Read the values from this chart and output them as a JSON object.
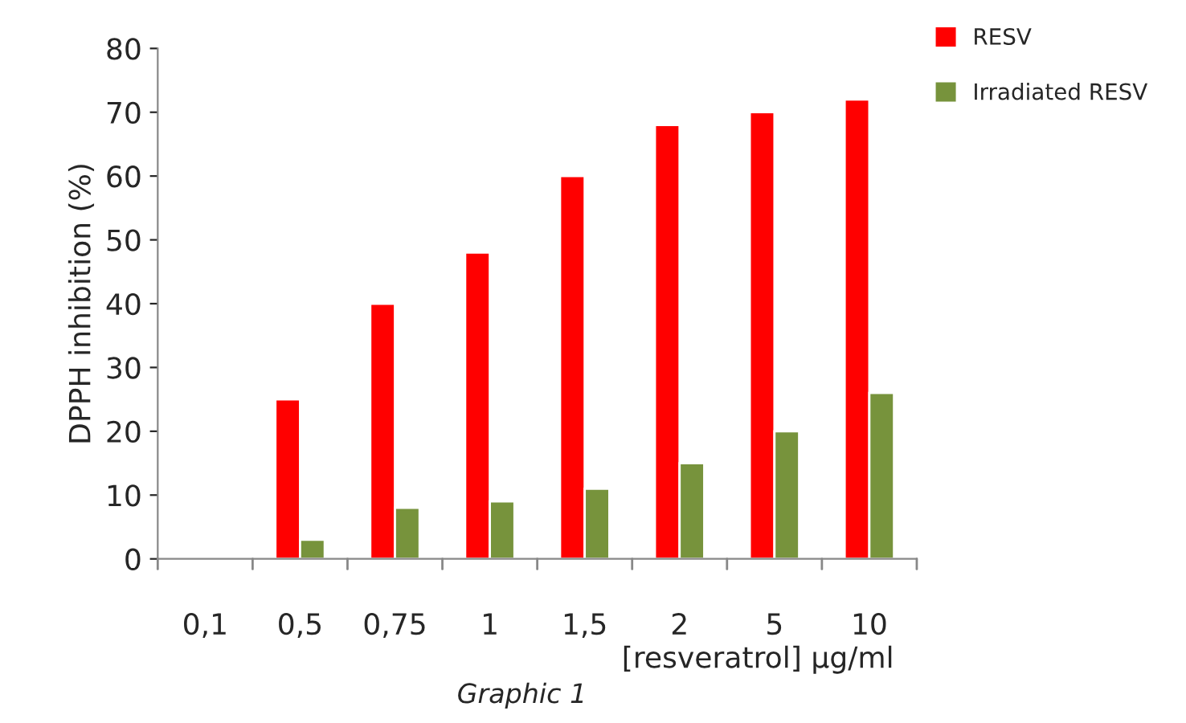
{
  "chart_data": {
    "type": "bar",
    "xlabel": "[resveratrol] µg/ml",
    "ylabel": "DPPH inhibition (%)",
    "categories": [
      "0,1",
      "0,5",
      "0,75",
      "1",
      "1,5",
      "2",
      "5",
      "10"
    ],
    "series": [
      {
        "name": "RESV",
        "color": "#ff0000",
        "values": [
          null,
          25,
          40,
          48,
          60,
          68,
          70,
          72
        ]
      },
      {
        "name": "Irradiated RESV",
        "color": "#77933c",
        "values": [
          null,
          3,
          8,
          9,
          11,
          15,
          20,
          26
        ]
      }
    ],
    "ylim": [
      0,
      80
    ],
    "yticks": [
      0,
      10,
      20,
      30,
      40,
      50,
      60,
      70,
      80
    ],
    "grid": false,
    "legend": "top right",
    "annotations": [
      "Graphic 1"
    ]
  }
}
